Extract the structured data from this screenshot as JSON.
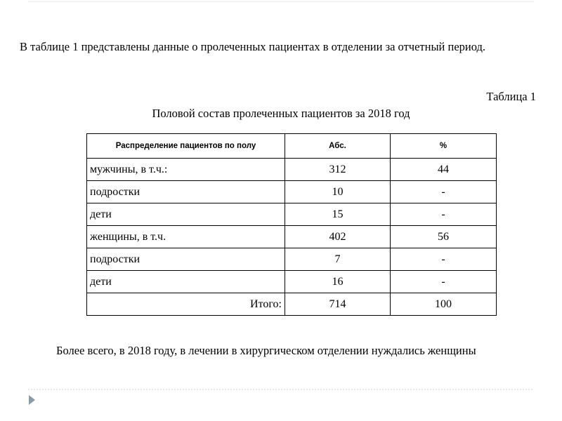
{
  "intro": "В таблице 1 представлены данные о пролеченных пациентах в отделении за отчетный период.",
  "table_label": "Таблица 1",
  "table_caption": "Половой состав пролеченных пациентов за 2018 год",
  "table": {
    "header": [
      "Распределение пациентов по полу",
      "Абс.",
      "%"
    ],
    "rows": [
      [
        "мужчины, в т.ч.:",
        312,
        44
      ],
      [
        "подростки",
        10,
        "-"
      ],
      [
        "дети",
        15,
        "-"
      ],
      [
        "женщины, в т.ч.",
        402,
        56
      ],
      [
        "подростки",
        7,
        "-"
      ],
      [
        "дети",
        16,
        "-"
      ],
      [
        "Итого:",
        714,
        100
      ]
    ]
  },
  "conclusion": "Более всего, в 2018 году, в лечении в хирургическом отделении нуждались женщины"
}
